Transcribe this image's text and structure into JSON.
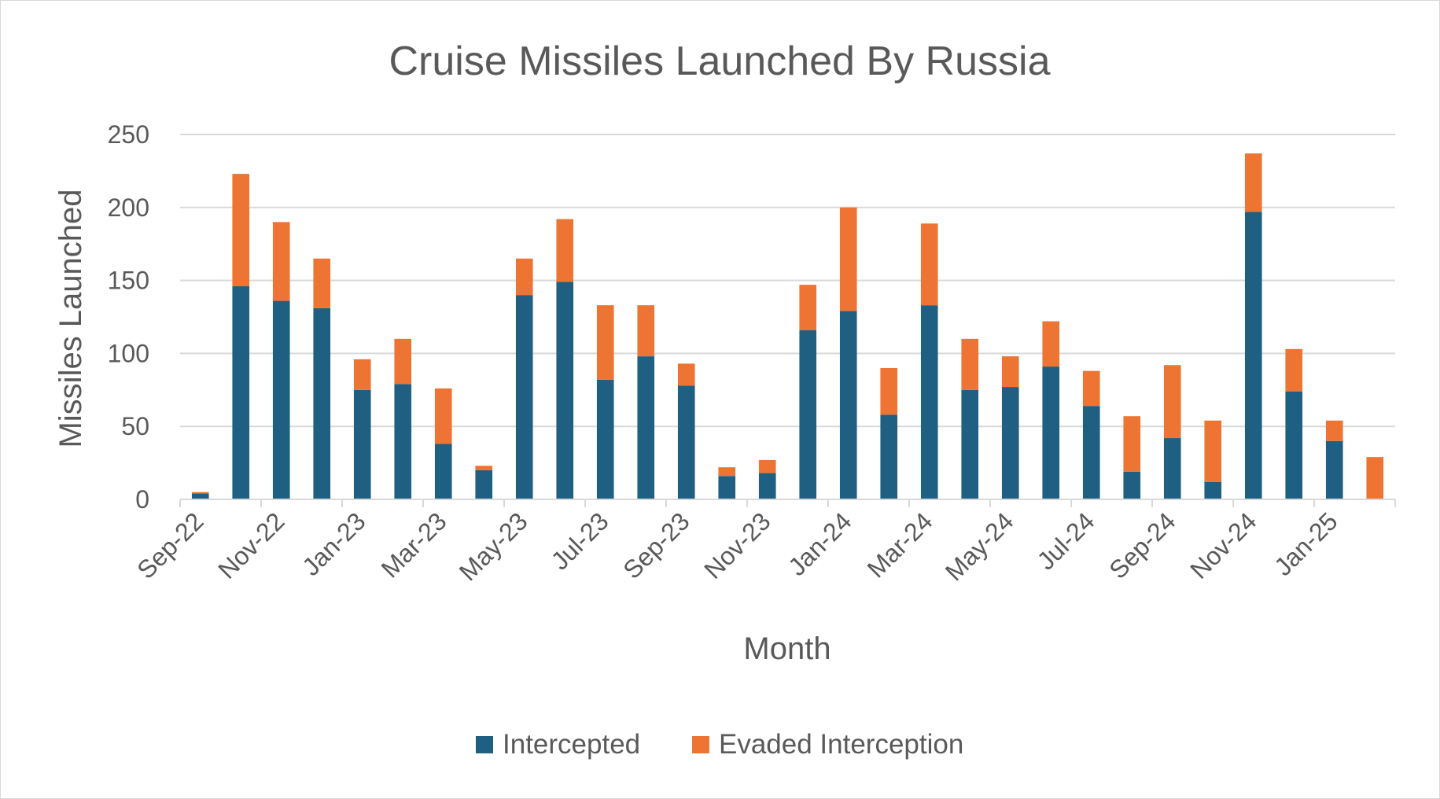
{
  "chart_data": {
    "type": "bar",
    "stacked": true,
    "title": "Cruise Missiles Launched By Russia",
    "xlabel": "Month",
    "ylabel": "Missiles Launched",
    "ylim": [
      0,
      250
    ],
    "yticks": [
      0,
      50,
      100,
      150,
      200,
      250
    ],
    "grid": true,
    "legend_position": "bottom",
    "categories": [
      "Sep-22",
      "Oct-22",
      "Nov-22",
      "Dec-22",
      "Jan-23",
      "Feb-23",
      "Mar-23",
      "Apr-23",
      "May-23",
      "Jun-23",
      "Jul-23",
      "Aug-23",
      "Sep-23",
      "Oct-23",
      "Nov-23",
      "Dec-23",
      "Jan-24",
      "Feb-24",
      "Mar-24",
      "Apr-24",
      "May-24",
      "Jun-24",
      "Jul-24",
      "Aug-24",
      "Sep-24",
      "Oct-24",
      "Nov-24",
      "Dec-24",
      "Jan-25",
      "Feb-25"
    ],
    "tick_labels": [
      "Sep-22",
      "Nov-22",
      "Jan-23",
      "Mar-23",
      "May-23",
      "Jul-23",
      "Sep-23",
      "Nov-23",
      "Jan-24",
      "Mar-24",
      "May-24",
      "Jul-24",
      "Sep-24",
      "Nov-24",
      "Jan-25"
    ],
    "series": [
      {
        "name": "Intercepted",
        "color": "#1f5f82",
        "values": [
          4,
          146,
          136,
          131,
          75,
          79,
          38,
          20,
          140,
          149,
          82,
          98,
          78,
          16,
          18,
          116,
          129,
          58,
          133,
          75,
          77,
          91,
          64,
          19,
          42,
          12,
          197,
          74,
          40,
          0
        ]
      },
      {
        "name": "Evaded Interception",
        "color": "#ed7433",
        "values": [
          1,
          77,
          54,
          34,
          21,
          31,
          38,
          3,
          25,
          43,
          51,
          35,
          15,
          6,
          9,
          31,
          71,
          32,
          56,
          35,
          21,
          31,
          24,
          38,
          50,
          42,
          40,
          29,
          14,
          29
        ]
      }
    ]
  }
}
